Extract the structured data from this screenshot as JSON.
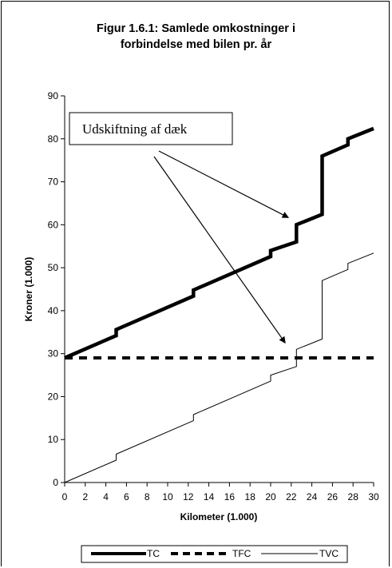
{
  "chart_data": {
    "type": "line",
    "title_line1": "Figur 1.6.1: Samlede omkostninger i",
    "title_line2": "forbindelse med bilen pr. år",
    "xlabel": "Kilometer (1.000)",
    "ylabel": "Kroner (1.000)",
    "xlim": [
      0,
      30
    ],
    "ylim": [
      0,
      90
    ],
    "x_ticks": [
      0,
      2,
      4,
      6,
      8,
      10,
      12,
      14,
      16,
      18,
      20,
      22,
      24,
      26,
      28,
      30
    ],
    "y_ticks": [
      0,
      10,
      20,
      30,
      40,
      50,
      60,
      70,
      80,
      90
    ],
    "grid": false,
    "legend_position": "bottom",
    "annotation": "Udskiftning af dæk",
    "series": [
      {
        "name": "TC",
        "style": "thick-solid",
        "color": "#000000",
        "points": [
          [
            0,
            29
          ],
          [
            5,
            34.2
          ],
          [
            5,
            35.6
          ],
          [
            12.5,
            43.4
          ],
          [
            12.5,
            44.8
          ],
          [
            20,
            52.6
          ],
          [
            20,
            54
          ],
          [
            22.5,
            56
          ],
          [
            22.5,
            60
          ],
          [
            25,
            62.4
          ],
          [
            25,
            76
          ],
          [
            27.5,
            78.6
          ],
          [
            27.5,
            80
          ],
          [
            30,
            82.4
          ]
        ]
      },
      {
        "name": "TFC",
        "style": "thick-dashed",
        "color": "#000000",
        "points": [
          [
            0,
            29
          ],
          [
            30,
            29
          ]
        ]
      },
      {
        "name": "TVC",
        "style": "thin-solid",
        "color": "#000000",
        "points": [
          [
            0,
            0
          ],
          [
            5,
            5.2
          ],
          [
            5,
            6.6
          ],
          [
            12.5,
            14.4
          ],
          [
            12.5,
            15.8
          ],
          [
            20,
            23.6
          ],
          [
            20,
            25
          ],
          [
            22.5,
            27
          ],
          [
            22.5,
            31
          ],
          [
            25,
            33.4
          ],
          [
            25,
            47
          ],
          [
            27.5,
            49.6
          ],
          [
            27.5,
            51
          ],
          [
            30,
            53.4
          ]
        ]
      }
    ]
  }
}
